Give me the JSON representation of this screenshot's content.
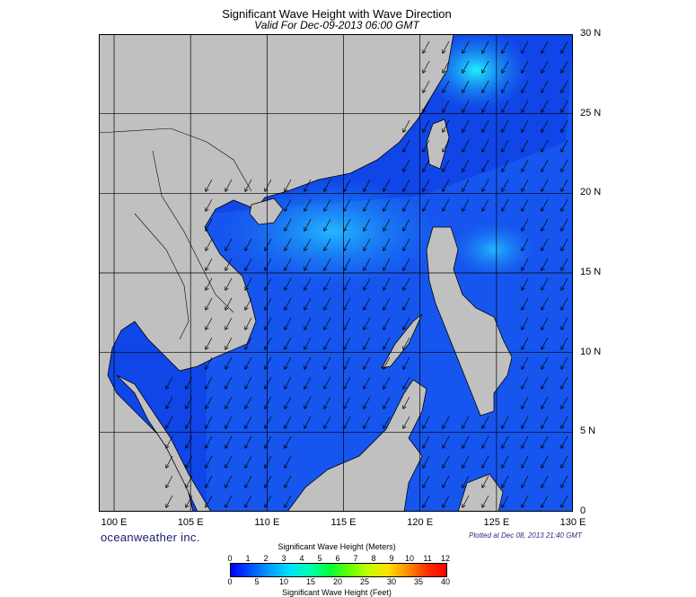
{
  "map": {
    "title": "Significant Wave Height with Wave Direction",
    "subtitle": "Valid For Dec-09-2013 06:00 GMT",
    "latitude_labels": [
      "30 N",
      "25 N",
      "20 N",
      "15 N",
      "10 N",
      "5 N",
      "0"
    ],
    "longitude_labels": [
      "100 E",
      "105 E",
      "110 E",
      "115 E",
      "120 E",
      "125 E",
      "130 E"
    ],
    "lat_range": [
      0,
      30
    ],
    "lon_range": [
      99,
      130
    ],
    "grid": true,
    "wave_direction": "northeast monsoon, waves travelling toward the southwest",
    "colors": {
      "land": "#c0c0c0",
      "deep_sea_low": "#0a2fd8",
      "sea_mid": "#1a7cf0",
      "sea_high": "#20f0ff",
      "coast": "#000000"
    }
  },
  "footer": {
    "brand": "oceanweather inc.",
    "plotted": "Plotted at Dec 08, 2013 21:40 GMT"
  },
  "legend": {
    "meters_title": "Significant Wave Height (Meters)",
    "feet_title": "Significant Wave Height (Feet)",
    "meters_ticks": [
      "0",
      "1",
      "2",
      "3",
      "4",
      "5",
      "6",
      "7",
      "8",
      "9",
      "10",
      "11",
      "12"
    ],
    "feet_ticks": [
      "0",
      "5",
      "10",
      "15",
      "20",
      "25",
      "30",
      "35",
      "40"
    ],
    "colors": [
      "#0000ff",
      "#0050ff",
      "#00a0ff",
      "#00e0ff",
      "#00ffb0",
      "#00ff40",
      "#60ff00",
      "#c0ff00",
      "#ffe000",
      "#ff9000",
      "#ff3000",
      "#ff0000"
    ]
  }
}
